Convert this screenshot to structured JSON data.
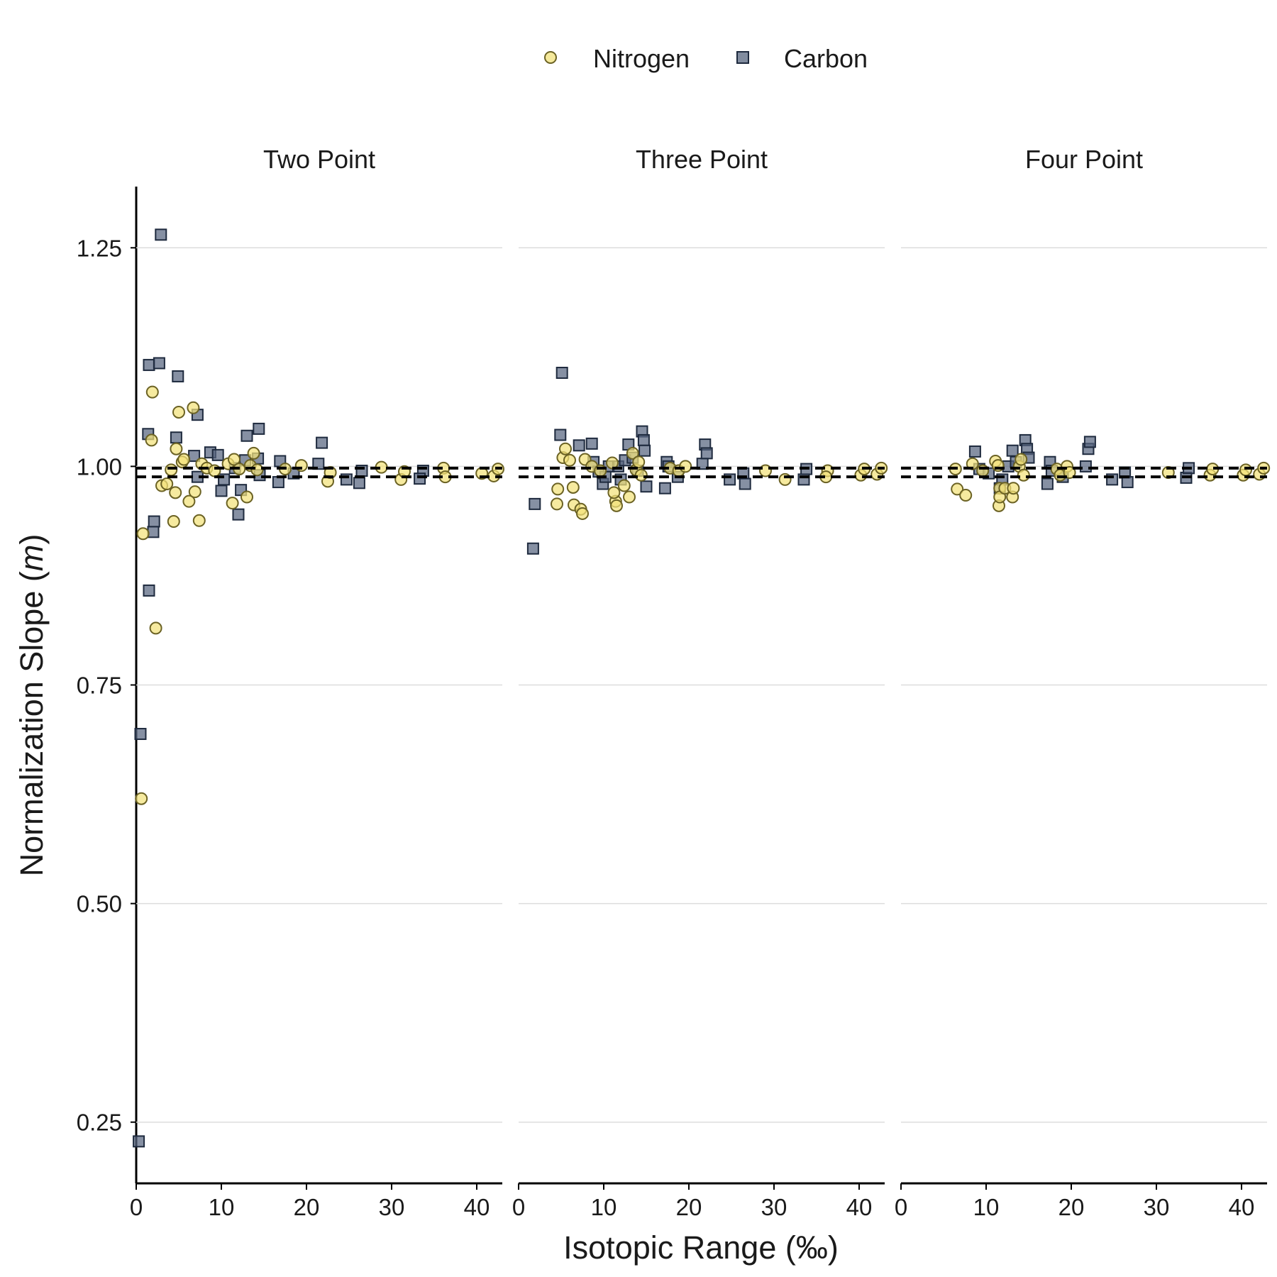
{
  "chart_data": {
    "type": "scatter",
    "title": "",
    "xlabel": "Isotopic Range (‰)",
    "ylabel_main": "Normalization Slope (",
    "ylabel_var": "m",
    "ylabel_end": ")",
    "xlim": [
      0,
      43
    ],
    "ylim": [
      0.18,
      1.32
    ],
    "x_ticks": [
      0,
      10,
      20,
      30,
      40
    ],
    "x_tick_labels": [
      "0",
      "10",
      "20",
      "30",
      "40"
    ],
    "y_ticks": [
      0.25,
      0.5,
      0.75,
      1.0,
      1.25
    ],
    "y_tick_labels": [
      "0.25",
      "0.50",
      "0.75",
      "1.00",
      "1.25"
    ],
    "grid": "horizontal",
    "legend_position": "top",
    "reference_lines": [
      0.998,
      0.988
    ],
    "legend": [
      {
        "key": "nitrogen",
        "label": "Nitrogen",
        "shape": "circle"
      },
      {
        "key": "carbon",
        "label": "Carbon",
        "shape": "square"
      }
    ],
    "colors": {
      "nitrogen_fill": "#f2e27a",
      "nitrogen_stroke": "#6b6224",
      "carbon_fill": "#57657f",
      "carbon_stroke": "#1e2a3e",
      "ref_line": "#000000",
      "grid": "#dddddd"
    },
    "panels": [
      {
        "title": "Two Point",
        "series": [
          {
            "key": "carbon",
            "points": [
              [
                0.3,
                0.228
              ],
              [
                0.5,
                0.694
              ],
              [
                1.5,
                0.858
              ],
              [
                1.4,
                1.037
              ],
              [
                1.5,
                1.116
              ],
              [
                2.7,
                1.118
              ],
              [
                2.9,
                1.265
              ],
              [
                2.1,
                0.937
              ],
              [
                2.0,
                0.925
              ],
              [
                4.9,
                1.103
              ],
              [
                4.7,
                1.033
              ],
              [
                7.2,
                1.059
              ],
              [
                6.8,
                1.012
              ],
              [
                7.2,
                0.988
              ],
              [
                8.7,
                1.016
              ],
              [
                9.6,
                1.013
              ],
              [
                10.0,
                0.972
              ],
              [
                10.3,
                0.985
              ],
              [
                11.6,
                0.998
              ],
              [
                12.0,
                0.945
              ],
              [
                12.3,
                0.973
              ],
              [
                12.8,
                1.007
              ],
              [
                13.0,
                1.035
              ],
              [
                14.4,
                1.043
              ],
              [
                14.3,
                1.009
              ],
              [
                14.5,
                0.99
              ],
              [
                16.7,
                0.982
              ],
              [
                16.9,
                1.006
              ],
              [
                18.5,
                0.992
              ],
              [
                21.4,
                1.003
              ],
              [
                21.8,
                1.027
              ],
              [
                24.7,
                0.985
              ],
              [
                26.2,
                0.981
              ],
              [
                26.5,
                0.995
              ],
              [
                33.7,
                0.995
              ],
              [
                33.3,
                0.986
              ]
            ]
          },
          {
            "key": "nitrogen",
            "points": [
              [
                0.6,
                0.62
              ],
              [
                0.8,
                0.923
              ],
              [
                1.8,
                1.03
              ],
              [
                1.9,
                1.085
              ],
              [
                2.3,
                0.815
              ],
              [
                3.0,
                0.978
              ],
              [
                3.6,
                0.98
              ],
              [
                4.1,
                0.996
              ],
              [
                4.4,
                0.937
              ],
              [
                4.6,
                0.97
              ],
              [
                4.7,
                1.02
              ],
              [
                5.0,
                1.062
              ],
              [
                5.4,
                1.005
              ],
              [
                5.6,
                1.008
              ],
              [
                6.2,
                0.96
              ],
              [
                6.7,
                1.067
              ],
              [
                6.9,
                0.971
              ],
              [
                7.4,
                0.938
              ],
              [
                7.7,
                1.003
              ],
              [
                8.3,
                0.998
              ],
              [
                9.2,
                0.995
              ],
              [
                10.8,
                1.003
              ],
              [
                11.3,
                0.958
              ],
              [
                11.5,
                1.008
              ],
              [
                12.1,
                0.997
              ],
              [
                13.0,
                0.965
              ],
              [
                13.4,
                1.001
              ],
              [
                13.8,
                1.015
              ],
              [
                14.2,
                0.996
              ],
              [
                17.5,
                0.997
              ],
              [
                19.4,
                1.001
              ],
              [
                22.5,
                0.983
              ],
              [
                22.8,
                0.993
              ],
              [
                28.8,
                0.999
              ],
              [
                31.1,
                0.985
              ],
              [
                31.5,
                0.994
              ],
              [
                36.1,
                0.998
              ],
              [
                36.3,
                0.988
              ],
              [
                40.6,
                0.992
              ],
              [
                42.0,
                0.989
              ],
              [
                42.5,
                0.997
              ]
            ]
          }
        ]
      },
      {
        "title": "Three Point",
        "series": [
          {
            "key": "carbon",
            "points": [
              [
                1.7,
                0.906
              ],
              [
                1.9,
                0.957
              ],
              [
                4.9,
                1.036
              ],
              [
                5.1,
                1.107
              ],
              [
                7.1,
                1.024
              ],
              [
                8.6,
                1.026
              ],
              [
                8.8,
                1.005
              ],
              [
                9.4,
                0.994
              ],
              [
                9.9,
                0.98
              ],
              [
                10.6,
                1.0
              ],
              [
                10.2,
                0.988
              ],
              [
                11.7,
                1.0
              ],
              [
                12.0,
                0.985
              ],
              [
                12.5,
                1.007
              ],
              [
                12.9,
                1.025
              ],
              [
                13.4,
                1.01
              ],
              [
                14.0,
                0.995
              ],
              [
                14.5,
                1.04
              ],
              [
                14.7,
                1.03
              ],
              [
                14.8,
                1.018
              ],
              [
                15.0,
                0.977
              ],
              [
                17.4,
                1.005
              ],
              [
                17.2,
                0.975
              ],
              [
                17.6,
                1.0
              ],
              [
                18.7,
                0.988
              ],
              [
                21.6,
                1.003
              ],
              [
                21.9,
                1.025
              ],
              [
                22.1,
                1.015
              ],
              [
                24.8,
                0.985
              ],
              [
                26.4,
                0.992
              ],
              [
                26.6,
                0.98
              ],
              [
                33.5,
                0.985
              ],
              [
                33.8,
                0.997
              ]
            ]
          },
          {
            "key": "nitrogen",
            "points": [
              [
                4.5,
                0.957
              ],
              [
                4.6,
                0.974
              ],
              [
                5.2,
                1.01
              ],
              [
                5.5,
                1.02
              ],
              [
                6.0,
                1.007
              ],
              [
                6.4,
                0.976
              ],
              [
                6.5,
                0.956
              ],
              [
                7.3,
                0.951
              ],
              [
                7.5,
                0.946
              ],
              [
                7.8,
                1.008
              ],
              [
                8.6,
                1.0
              ],
              [
                9.6,
                0.995
              ],
              [
                11.0,
                1.004
              ],
              [
                11.4,
                0.96
              ],
              [
                11.5,
                0.955
              ],
              [
                11.2,
                0.97
              ],
              [
                12.4,
                0.978
              ],
              [
                13.0,
                0.965
              ],
              [
                13.4,
                1.015
              ],
              [
                13.8,
                0.996
              ],
              [
                14.1,
                1.005
              ],
              [
                14.4,
                0.99
              ],
              [
                17.8,
                0.998
              ],
              [
                18.8,
                0.995
              ],
              [
                19.6,
                1.0
              ],
              [
                29.0,
                0.995
              ],
              [
                31.3,
                0.985
              ],
              [
                36.3,
                0.995
              ],
              [
                36.1,
                0.988
              ],
              [
                40.2,
                0.99
              ],
              [
                40.6,
                0.997
              ],
              [
                42.1,
                0.991
              ],
              [
                42.6,
                0.998
              ]
            ]
          }
        ]
      },
      {
        "title": "Four Point",
        "series": [
          {
            "key": "carbon",
            "points": [
              [
                8.7,
                1.017
              ],
              [
                9.2,
                0.997
              ],
              [
                10.3,
                0.992
              ],
              [
                11.6,
                0.975
              ],
              [
                11.9,
                0.985
              ],
              [
                12.6,
                1.0
              ],
              [
                13.1,
                1.018
              ],
              [
                13.5,
                1.005
              ],
              [
                14.6,
                1.03
              ],
              [
                14.8,
                1.02
              ],
              [
                15.0,
                1.01
              ],
              [
                17.2,
                0.98
              ],
              [
                17.5,
                1.005
              ],
              [
                17.7,
                0.995
              ],
              [
                19.0,
                0.988
              ],
              [
                21.7,
                1.0
              ],
              [
                22.0,
                1.02
              ],
              [
                22.2,
                1.028
              ],
              [
                24.8,
                0.985
              ],
              [
                26.3,
                0.993
              ],
              [
                26.6,
                0.982
              ],
              [
                33.5,
                0.987
              ],
              [
                33.8,
                0.998
              ]
            ]
          },
          {
            "key": "nitrogen",
            "points": [
              [
                6.4,
                0.997
              ],
              [
                6.6,
                0.974
              ],
              [
                7.6,
                0.967
              ],
              [
                8.4,
                1.003
              ],
              [
                9.6,
                0.995
              ],
              [
                11.1,
                1.006
              ],
              [
                11.4,
                1.001
              ],
              [
                11.5,
                0.955
              ],
              [
                11.6,
                0.975
              ],
              [
                11.6,
                0.965
              ],
              [
                12.2,
                0.975
              ],
              [
                13.1,
                0.965
              ],
              [
                13.2,
                0.975
              ],
              [
                13.9,
                1.0
              ],
              [
                14.1,
                1.008
              ],
              [
                14.4,
                0.99
              ],
              [
                18.3,
                0.997
              ],
              [
                18.7,
                0.99
              ],
              [
                19.5,
                1.0
              ],
              [
                19.8,
                0.993
              ],
              [
                31.4,
                0.993
              ],
              [
                36.3,
                0.99
              ],
              [
                36.6,
                0.997
              ],
              [
                40.2,
                0.99
              ],
              [
                40.5,
                0.996
              ],
              [
                42.1,
                0.991
              ],
              [
                42.6,
                0.998
              ]
            ]
          }
        ]
      }
    ]
  }
}
